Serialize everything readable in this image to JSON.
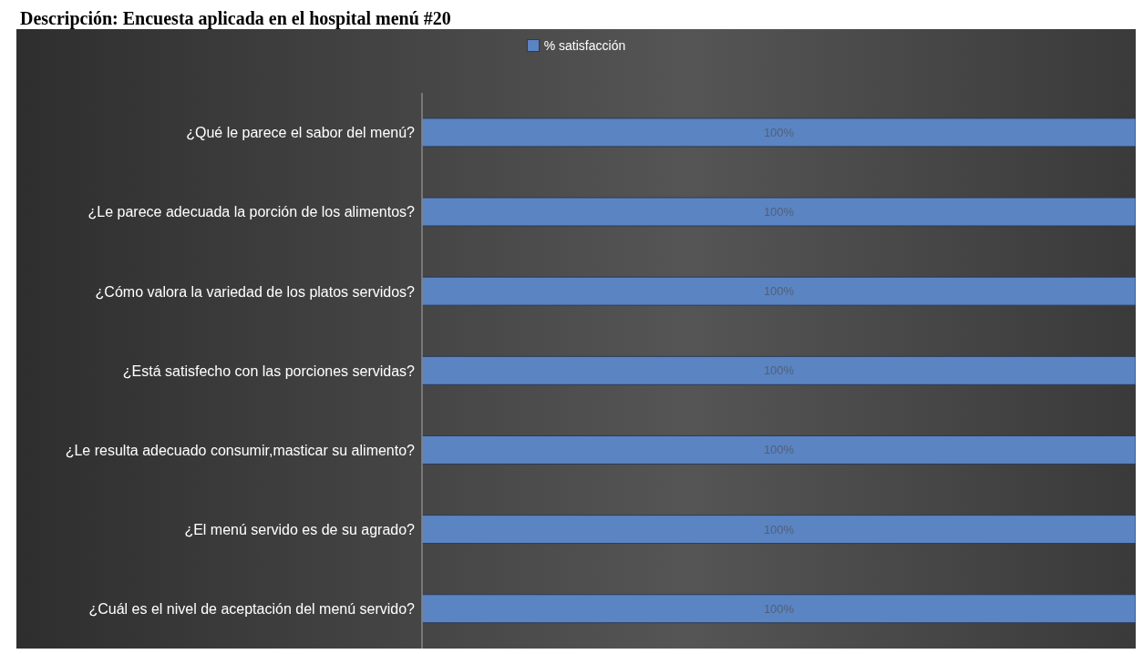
{
  "chart_data": {
    "type": "bar",
    "orientation": "horizontal",
    "title": "Descripción:  Encuesta aplicada en el hospital menú #20",
    "categories": [
      "¿Qué le parece el sabor del menú?",
      "¿Le parece adecuada la porción de los alimentos?",
      "¿Cómo valora la variedad de los platos servidos?",
      "¿Está satisfecho con las porciones servidas?",
      "¿Le resulta adecuado consumir,masticar su alimento?",
      "¿El menú servido es de su agrado?",
      "¿Cuál es el nivel de aceptación del menú servido?"
    ],
    "series": [
      {
        "name": "% satisfacción",
        "color": "#5b84c2",
        "values": [
          100,
          100,
          100,
          100,
          100,
          100,
          100
        ],
        "value_labels": [
          "100%",
          "100%",
          "100%",
          "100%",
          "100%",
          "100%",
          "100%"
        ]
      }
    ],
    "legend": "top",
    "grid": false
  }
}
